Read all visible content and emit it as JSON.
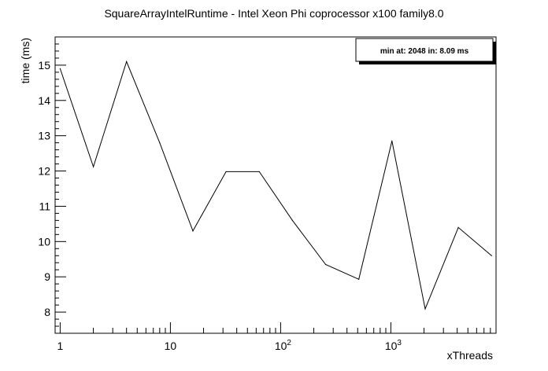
{
  "chart_data": {
    "type": "line",
    "title": "SquareArrayIntelRuntime - Intel Xeon Phi coprocessor x100 family8.0",
    "xlabel": "xThreads",
    "ylabel": "time (ms)",
    "x_scale": "log",
    "xlim": [
      0.9,
      9000
    ],
    "ylim": [
      7.4,
      15.8
    ],
    "x_ticks": [
      {
        "value": 1,
        "label": "1",
        "sup": ""
      },
      {
        "value": 10,
        "label": "10",
        "sup": ""
      },
      {
        "value": 100,
        "label": "10",
        "sup": "2"
      },
      {
        "value": 1000,
        "label": "10",
        "sup": "3"
      }
    ],
    "y_ticks": [
      8,
      9,
      10,
      11,
      12,
      13,
      14,
      15
    ],
    "x": [
      1,
      2,
      4,
      8,
      16,
      32,
      64,
      128,
      256,
      512,
      1024,
      2048,
      4096,
      8192
    ],
    "series": [
      {
        "name": "",
        "values": [
          14.9,
          12.12,
          15.1,
          12.8,
          10.3,
          11.98,
          11.98,
          10.6,
          9.35,
          8.93,
          12.85,
          8.09,
          10.4,
          9.6
        ]
      }
    ],
    "legend": {
      "text": "min at: 2048 in: 8.09 ms",
      "position": "top-right"
    },
    "grid": false
  }
}
